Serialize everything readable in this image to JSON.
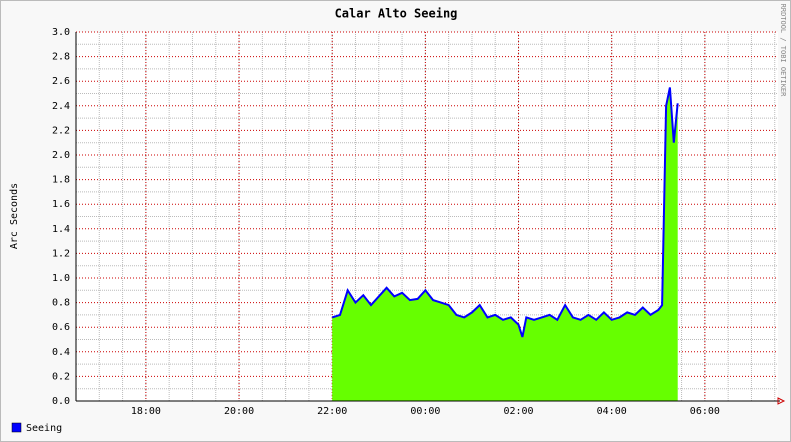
{
  "chart_data": {
    "type": "area",
    "title": "Calar Alto Seeing",
    "y_label": "Arc Seconds",
    "side_text": "RRDTOOL / TOBI OETIKER",
    "x": [
      22,
      22.167,
      22.333,
      22.5,
      22.667,
      22.833,
      23,
      23.167,
      23.333,
      23.5,
      23.667,
      23.833,
      24,
      24.167,
      24.333,
      24.5,
      24.667,
      24.833,
      25,
      25.167,
      25.333,
      25.5,
      25.667,
      25.833,
      26,
      26.083,
      26.167,
      26.333,
      26.5,
      26.667,
      26.833,
      27,
      27.167,
      27.333,
      27.5,
      27.667,
      27.833,
      28,
      28.167,
      28.333,
      28.5,
      28.667,
      28.833,
      29,
      29.083,
      29.167,
      29.25,
      29.333,
      29.417
    ],
    "series": [
      {
        "name": "Seeing",
        "color": "#0000ff",
        "fill": "#66ff00",
        "values": [
          0.68,
          0.7,
          0.9,
          0.8,
          0.86,
          0.78,
          0.85,
          0.92,
          0.85,
          0.88,
          0.82,
          0.83,
          0.9,
          0.82,
          0.8,
          0.78,
          0.7,
          0.68,
          0.72,
          0.78,
          0.68,
          0.7,
          0.66,
          0.68,
          0.62,
          0.52,
          0.68,
          0.66,
          0.68,
          0.7,
          0.66,
          0.78,
          0.68,
          0.66,
          0.7,
          0.66,
          0.72,
          0.66,
          0.68,
          0.72,
          0.7,
          0.76,
          0.7,
          0.74,
          0.78,
          2.4,
          2.55,
          2.1,
          2.42
        ]
      }
    ],
    "xlim": [
      16.5,
      31.57
    ],
    "xticks": [
      {
        "value": 18,
        "label": "18:00"
      },
      {
        "value": 20,
        "label": "20:00"
      },
      {
        "value": 22,
        "label": "22:00"
      },
      {
        "value": 24,
        "label": "00:00"
      },
      {
        "value": 26,
        "label": "02:00"
      },
      {
        "value": 28,
        "label": "04:00"
      },
      {
        "value": 30,
        "label": "06:00"
      }
    ],
    "ylim": [
      0,
      3
    ],
    "yticks": [
      {
        "value": 0,
        "label": "0.0"
      },
      0.2,
      0.4,
      0.6,
      0.8,
      {
        "value": 1,
        "label": "1.0"
      },
      1.2,
      1.4,
      1.6,
      1.8,
      {
        "value": 2,
        "label": "2.0"
      },
      2.2,
      2.4,
      2.6,
      2.8,
      {
        "value": 3,
        "label": "3.0"
      }
    ],
    "grid": true
  }
}
